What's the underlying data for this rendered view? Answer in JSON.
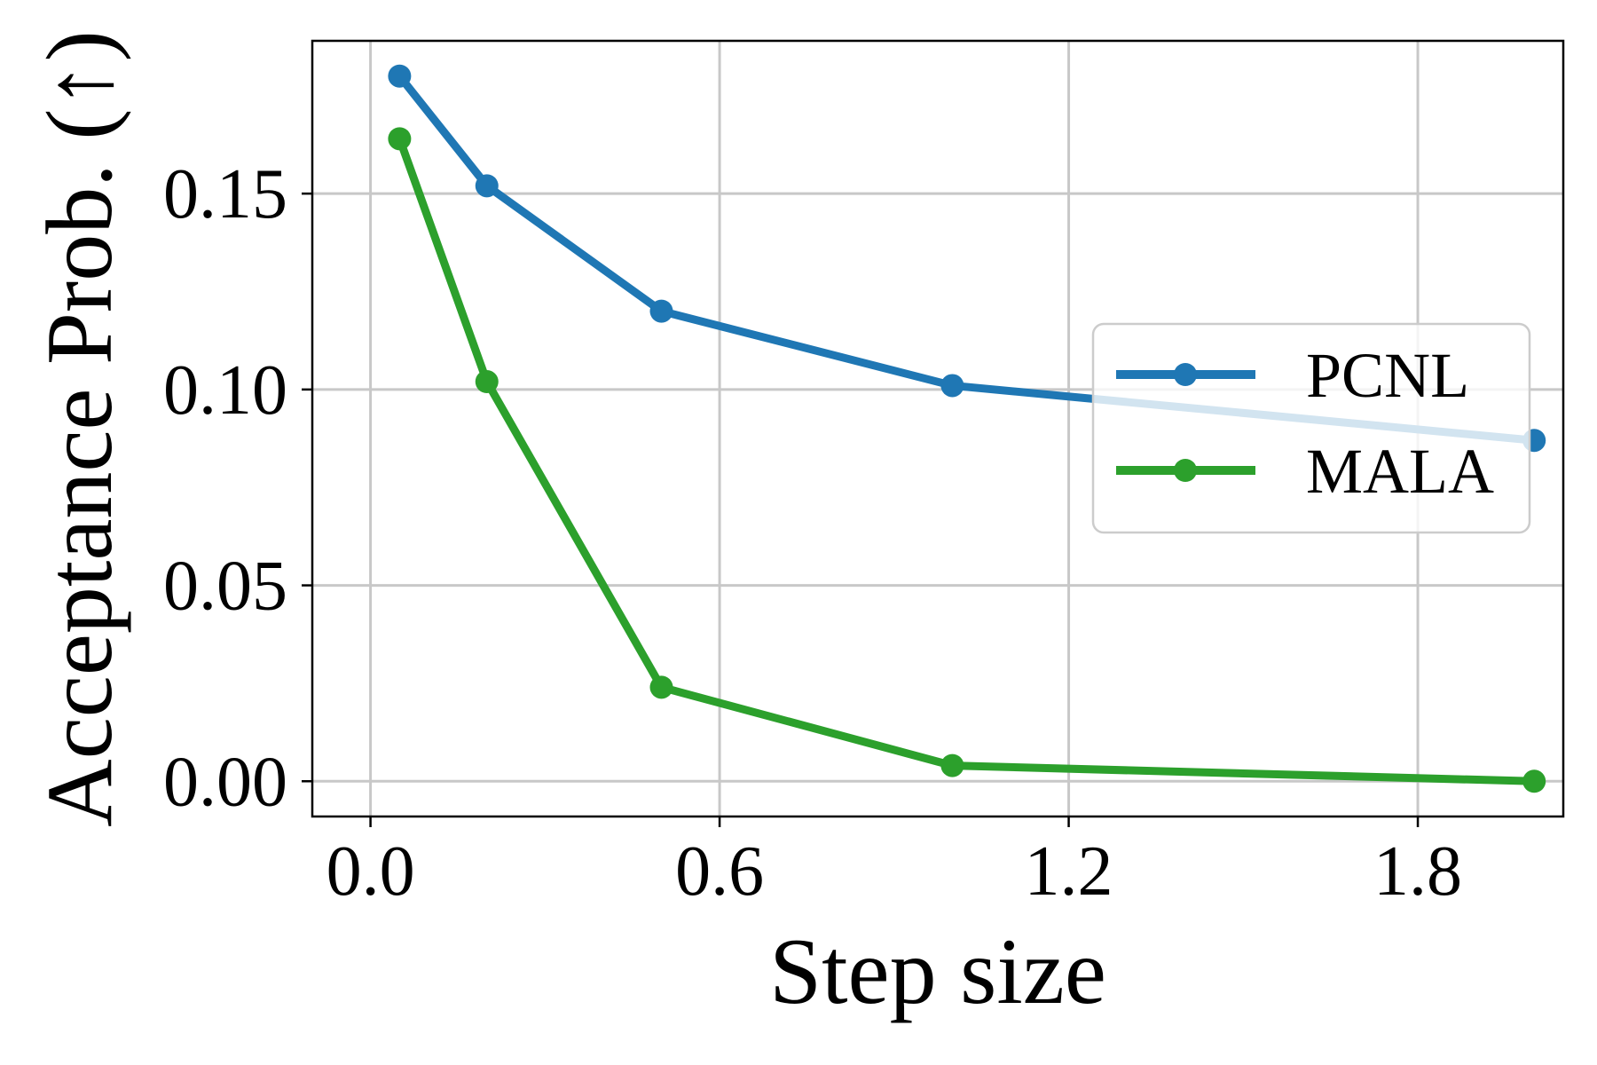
{
  "chart_data": {
    "type": "line",
    "title": "",
    "xlabel": "Step size",
    "ylabel": "Acceptance Prob. (↑)",
    "xlim": [
      -0.1,
      2.05
    ],
    "ylim": [
      -0.009,
      0.189
    ],
    "xticks": [
      0.0,
      0.6,
      1.2,
      1.8
    ],
    "xtick_labels": [
      "0.0",
      "0.6",
      "1.2",
      "1.8"
    ],
    "yticks": [
      0.0,
      0.05,
      0.1,
      0.15
    ],
    "ytick_labels": [
      "0.00",
      "0.05",
      "0.10",
      "0.15"
    ],
    "grid": true,
    "legend_position": "center-right",
    "series": [
      {
        "name": "PCNL",
        "color": "#1f77b4",
        "x": [
          0.05,
          0.2,
          0.5,
          1.0,
          2.0
        ],
        "y": [
          0.18,
          0.152,
          0.12,
          0.101,
          0.087
        ]
      },
      {
        "name": "MALA",
        "color": "#2ca02c",
        "x": [
          0.05,
          0.2,
          0.5,
          1.0,
          2.0
        ],
        "y": [
          0.164,
          0.102,
          0.024,
          0.004,
          0.0
        ]
      }
    ]
  }
}
